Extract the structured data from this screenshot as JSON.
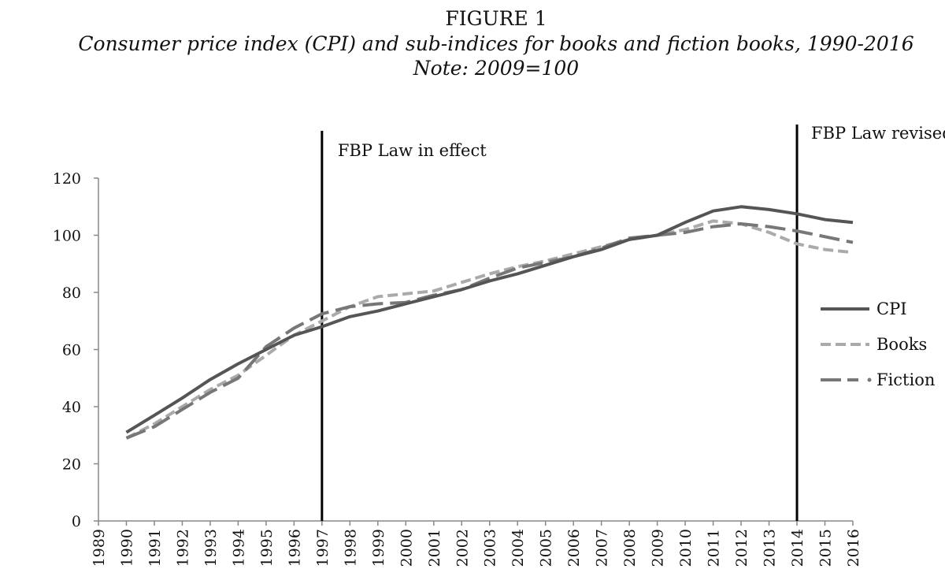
{
  "figure": {
    "title": "FIGURE 1",
    "subtitle": "Consumer price index (CPI) and sub-indices for books and fiction books, 1990-2016",
    "note": "Note: 2009=100"
  },
  "chart_data": {
    "type": "line",
    "x": [
      1990,
      1991,
      1992,
      1993,
      1994,
      1995,
      1996,
      1997,
      1998,
      1999,
      2000,
      2001,
      2002,
      2003,
      2004,
      2005,
      2006,
      2007,
      2008,
      2009,
      2010,
      2011,
      2012,
      2013,
      2014,
      2015,
      2016
    ],
    "x_tick_labels": [
      "1989",
      "1990",
      "1991",
      "1992",
      "1993",
      "1994",
      "1995",
      "1996",
      "1997",
      "1998",
      "1999",
      "2000",
      "2001",
      "2002",
      "2003",
      "2004",
      "2005",
      "2006",
      "2007",
      "2008",
      "2009",
      "2010",
      "2011",
      "2012",
      "2013",
      "2014",
      "2015",
      "2016"
    ],
    "xlim": [
      1989,
      2016
    ],
    "ylim": [
      0,
      120
    ],
    "y_ticks": [
      0,
      20,
      40,
      60,
      80,
      100,
      120
    ],
    "y_tick_labels": [
      "0",
      "20",
      "40",
      "60",
      "80",
      "100",
      "120"
    ],
    "grid": false,
    "legend_position": "right",
    "series": [
      {
        "name": "CPI",
        "style": "solid",
        "color": "#555555",
        "values": [
          31,
          37,
          43,
          49.5,
          55,
          60,
          65,
          68,
          71.5,
          73.5,
          76,
          78.5,
          81,
          84,
          86.5,
          89.5,
          92.5,
          95,
          98.5,
          100,
          104.5,
          108.5,
          110,
          109,
          107.5,
          105.5,
          104.5
        ]
      },
      {
        "name": "Books",
        "style": "dashed",
        "color": "#aaaaaa",
        "values": [
          29,
          34,
          40,
          46,
          51,
          58,
          65,
          70,
          75,
          78.5,
          79.5,
          80.5,
          83.5,
          86.5,
          89,
          91,
          93.5,
          96,
          98.5,
          100,
          102,
          105,
          104,
          101,
          97,
          95,
          94
        ]
      },
      {
        "name": "Fiction",
        "style": "long-dash-dot",
        "color": "#777777",
        "values": [
          29,
          33,
          39,
          45,
          50,
          61,
          67.5,
          72.5,
          75,
          76,
          76.5,
          79,
          81,
          85,
          88.5,
          90.5,
          92.5,
          95.5,
          99,
          100,
          101,
          103,
          104,
          103,
          101.5,
          99.5,
          97.5
        ]
      }
    ],
    "annotations": [
      {
        "x": 1997,
        "text": "FBP Law in effect"
      },
      {
        "x": 2014,
        "text": "FBP Law revised"
      }
    ]
  }
}
